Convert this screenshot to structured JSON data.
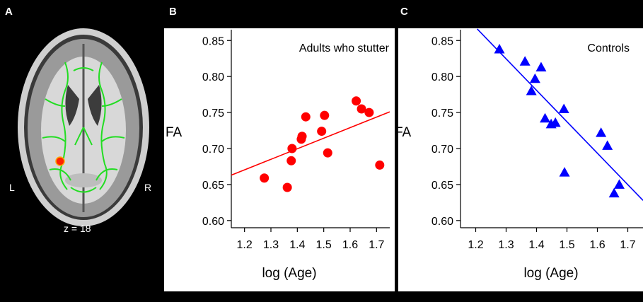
{
  "panels": {
    "a": {
      "letter": "A",
      "left_label": "L",
      "right_label": "R",
      "slice_label": "z = 18"
    },
    "b": {
      "letter": "B"
    },
    "c": {
      "letter": "C"
    }
  },
  "colors": {
    "adults_who_stutter": "#ff0000",
    "controls": "#0000ff",
    "tract": "#22dd22",
    "cluster": "#ff2200"
  },
  "chart_data": [
    {
      "type": "scatter",
      "title": "Adults who stutter",
      "xlabel": "log (Age)",
      "ylabel": "FA",
      "xlim": [
        1.15,
        1.75
      ],
      "ylim": [
        0.59,
        0.865
      ],
      "xticks": [
        "1.2",
        "1.3",
        "1.4",
        "1.5",
        "1.6",
        "1.7"
      ],
      "yticks": [
        "0.60",
        "0.65",
        "0.70",
        "0.75",
        "0.80",
        "0.85"
      ],
      "marker": "circle",
      "color": "#ff0000",
      "points": [
        {
          "x": 1.275,
          "y": 0.659
        },
        {
          "x": 1.362,
          "y": 0.646
        },
        {
          "x": 1.377,
          "y": 0.683
        },
        {
          "x": 1.38,
          "y": 0.7
        },
        {
          "x": 1.415,
          "y": 0.713
        },
        {
          "x": 1.418,
          "y": 0.717
        },
        {
          "x": 1.432,
          "y": 0.744
        },
        {
          "x": 1.492,
          "y": 0.724
        },
        {
          "x": 1.503,
          "y": 0.746
        },
        {
          "x": 1.515,
          "y": 0.694
        },
        {
          "x": 1.623,
          "y": 0.766
        },
        {
          "x": 1.643,
          "y": 0.755
        },
        {
          "x": 1.672,
          "y": 0.75
        },
        {
          "x": 1.712,
          "y": 0.677
        }
      ],
      "fit_line": {
        "x": [
          1.15,
          1.75
        ],
        "y": [
          0.663,
          0.751
        ]
      }
    },
    {
      "type": "scatter",
      "title": "Controls",
      "xlabel": "log (Age)",
      "ylabel": "FA",
      "xlim": [
        1.15,
        1.75
      ],
      "ylim": [
        0.59,
        0.865
      ],
      "xticks": [
        "1.2",
        "1.3",
        "1.4",
        "1.5",
        "1.6",
        "1.7"
      ],
      "yticks": [
        "0.60",
        "0.65",
        "0.70",
        "0.75",
        "0.80",
        "0.85"
      ],
      "marker": "triangle",
      "color": "#0000ff",
      "points": [
        {
          "x": 1.278,
          "y": 0.838
        },
        {
          "x": 1.362,
          "y": 0.821
        },
        {
          "x": 1.383,
          "y": 0.78
        },
        {
          "x": 1.395,
          "y": 0.797
        },
        {
          "x": 1.415,
          "y": 0.813
        },
        {
          "x": 1.428,
          "y": 0.742
        },
        {
          "x": 1.448,
          "y": 0.734
        },
        {
          "x": 1.462,
          "y": 0.736
        },
        {
          "x": 1.49,
          "y": 0.755
        },
        {
          "x": 1.492,
          "y": 0.667
        },
        {
          "x": 1.612,
          "y": 0.722
        },
        {
          "x": 1.633,
          "y": 0.704
        },
        {
          "x": 1.655,
          "y": 0.638
        },
        {
          "x": 1.672,
          "y": 0.65
        }
      ],
      "fit_line": {
        "x": [
          1.205,
          1.75
        ],
        "y": [
          0.866,
          0.628
        ]
      }
    }
  ]
}
